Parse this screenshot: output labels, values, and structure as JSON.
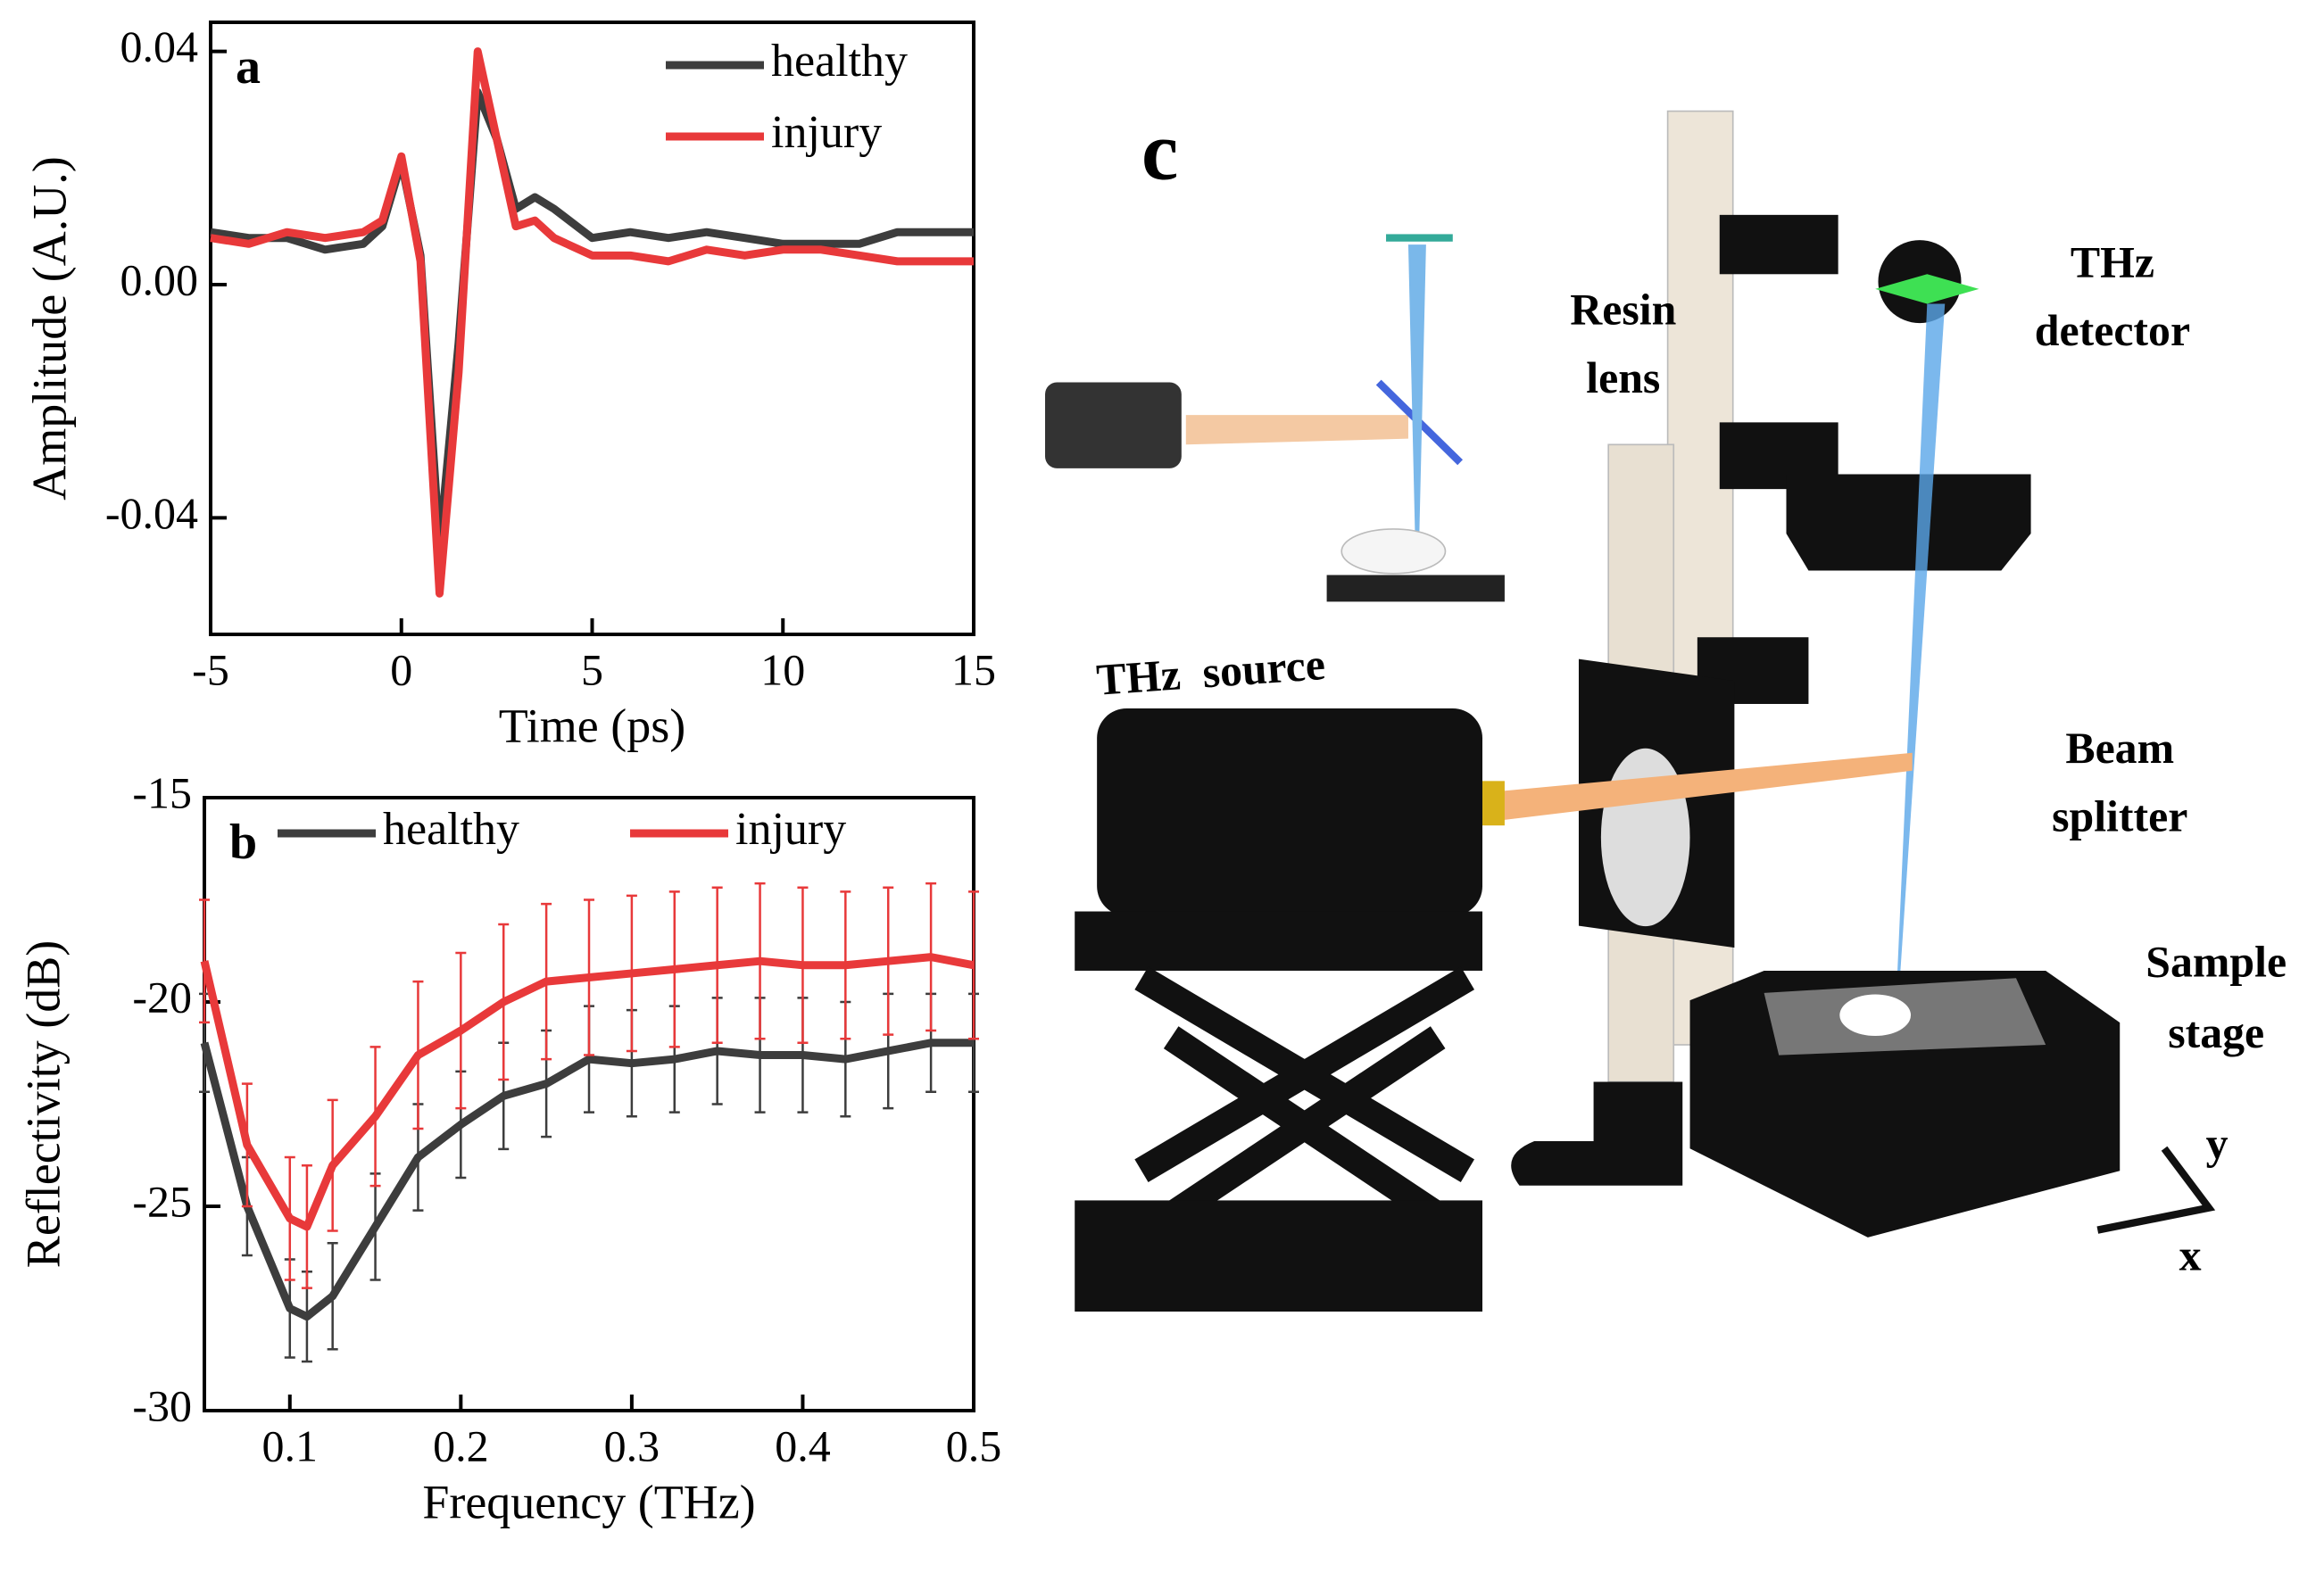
{
  "chart_data": [
    {
      "type": "line",
      "panel_label": "a",
      "xlabel": "Time (ps)",
      "ylabel": "Amplitude (A.U.)",
      "xlim": [
        -5,
        15
      ],
      "ylim": [
        -0.06,
        0.045
      ],
      "xticks": [
        -5,
        0,
        5,
        10,
        15
      ],
      "yticks": [
        0.04,
        {
          "value": 0,
          "label": "0.00"
        },
        -0.04
      ],
      "legend_loc": "upper right",
      "legend_layout": "vertical",
      "x": [
        -5,
        -4,
        -3,
        -2,
        -1,
        -0.5,
        0,
        0.5,
        1,
        1.5,
        2,
        2.5,
        3,
        3.5,
        4,
        5,
        6,
        7,
        8,
        9,
        10,
        11,
        12,
        13,
        14,
        15
      ],
      "series": [
        {
          "name": "healthy",
          "color": "#3d3d3d",
          "values": [
            0.009,
            0.008,
            0.008,
            0.006,
            0.007,
            0.01,
            0.021,
            0.005,
            -0.045,
            -0.01,
            0.033,
            0.025,
            0.013,
            0.015,
            0.013,
            0.008,
            0.009,
            0.008,
            0.009,
            0.008,
            0.007,
            0.007,
            0.007,
            0.009,
            0.009,
            0.009
          ]
        },
        {
          "name": "injury",
          "color": "#e8393a",
          "values": [
            0.008,
            0.007,
            0.009,
            0.008,
            0.009,
            0.011,
            0.022,
            0.004,
            -0.053,
            -0.015,
            0.04,
            0.025,
            0.01,
            0.011,
            0.008,
            0.005,
            0.005,
            0.004,
            0.006,
            0.005,
            0.006,
            0.006,
            0.005,
            0.004,
            0.004,
            0.004
          ]
        }
      ]
    },
    {
      "type": "line",
      "panel_label": "b",
      "xlabel": "Frequency (THz)",
      "ylabel": "Reflectivity (dB)",
      "xlim": [
        0.05,
        0.5
      ],
      "ylim": [
        -30,
        -15
      ],
      "xticks": [
        0.1,
        0.2,
        0.3,
        0.4,
        0.5
      ],
      "yticks": [
        -30,
        -25,
        -20,
        -15
      ],
      "legend_loc": "upper right",
      "legend_layout": "horizontal",
      "x": [
        0.05,
        0.075,
        0.1,
        0.11,
        0.125,
        0.15,
        0.175,
        0.2,
        0.225,
        0.25,
        0.275,
        0.3,
        0.325,
        0.35,
        0.375,
        0.4,
        0.425,
        0.45,
        0.475,
        0.5
      ],
      "series": [
        {
          "name": "healthy",
          "color": "#3d3d3d",
          "values": [
            -21,
            -25,
            -27.5,
            -27.7,
            -27.2,
            -25.5,
            -23.8,
            -23,
            -22.3,
            -22,
            -21.4,
            -21.5,
            -21.4,
            -21.2,
            -21.3,
            -21.3,
            -21.4,
            -21.2,
            -21,
            -21
          ],
          "errors": [
            1.2,
            1.2,
            1.2,
            1.1,
            1.3,
            1.3,
            1.3,
            1.3,
            1.3,
            1.3,
            1.3,
            1.3,
            1.3,
            1.3,
            1.4,
            1.4,
            1.4,
            1.4,
            1.2,
            1.2
          ]
        },
        {
          "name": "injury",
          "color": "#e8393a",
          "values": [
            -19,
            -23.5,
            -25.3,
            -25.5,
            -24,
            -22.8,
            -21.3,
            -20.7,
            -20,
            -19.5,
            -19.4,
            -19.3,
            -19.2,
            -19.1,
            -19,
            -19.1,
            -19.1,
            -19,
            -18.9,
            -19.1
          ],
          "errors": [
            1.5,
            1.5,
            1.5,
            1.5,
            1.6,
            1.7,
            1.8,
            1.9,
            1.9,
            1.9,
            1.9,
            1.9,
            1.9,
            1.9,
            1.9,
            1.9,
            1.8,
            1.8,
            1.8,
            1.8
          ]
        }
      ]
    }
  ],
  "diagram": {
    "panel_label": "c",
    "labels": {
      "detector": [
        "THz",
        "detector"
      ],
      "lens": [
        "Resin",
        "lens"
      ],
      "splitter": [
        "Beam",
        "splitter"
      ],
      "stage": [
        "Sample",
        "stage"
      ],
      "source": "THz  source",
      "axis_y": "y",
      "axis_x": "x"
    }
  }
}
